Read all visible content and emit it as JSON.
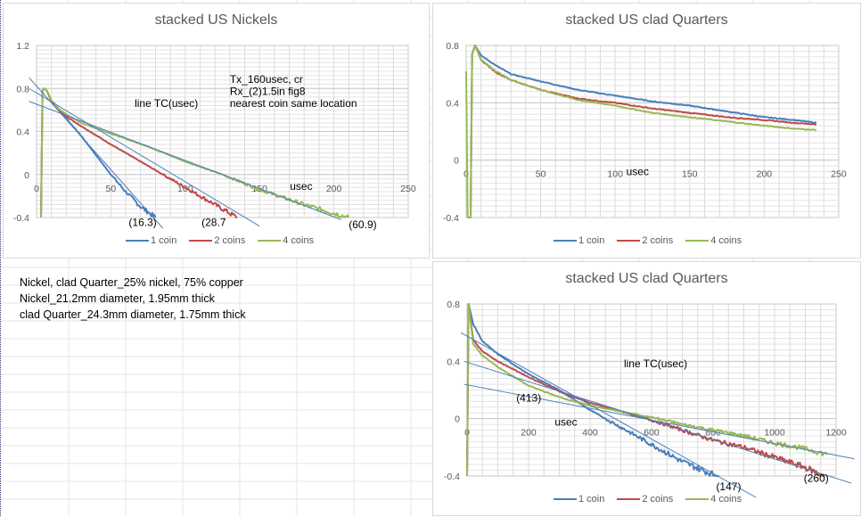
{
  "colors": {
    "one_coin": "#4a7ebb",
    "two_coins": "#be4b48",
    "four_coins": "#98b954",
    "trendline": "#4a7ebb",
    "grid": "#d9d9d9"
  },
  "notes": [
    "Nickel, clad Quarter_25% nickel, 75% copper",
    "Nickel_21.2mm diameter, 1.95mm thick",
    "clad Quarter_24.3mm diameter, 1.75mm thick"
  ],
  "chart_data": [
    {
      "type": "line",
      "title": "stacked US Nickels",
      "xlabel": "usec",
      "ylabel": "",
      "xlim": [
        0,
        250
      ],
      "ylim": [
        -0.4,
        1.2
      ],
      "xticks": [
        "0",
        "50",
        "100",
        "150",
        "200",
        "250"
      ],
      "yticks": [
        "-0.4",
        "0",
        "0.4",
        "0.8",
        "1.2"
      ],
      "xtick_values": [
        0,
        50,
        100,
        150,
        200,
        250
      ],
      "ytick_values": [
        -0.4,
        0,
        0.4,
        0.8,
        1.2
      ],
      "grid": true,
      "legend": "bottom",
      "series": [
        {
          "name": "1 coin",
          "x": [
            3,
            4,
            5,
            7,
            10,
            15,
            20,
            30,
            40,
            50,
            60,
            70,
            80
          ],
          "y": [
            -0.4,
            0.78,
            0.8,
            0.78,
            0.68,
            0.6,
            0.52,
            0.36,
            0.18,
            0.0,
            -0.16,
            -0.3,
            -0.4
          ]
        },
        {
          "name": "2 coins",
          "x": [
            3,
            4,
            5,
            7,
            10,
            15,
            20,
            30,
            50,
            70,
            85,
            100,
            120,
            135
          ],
          "y": [
            -0.4,
            0.78,
            0.8,
            0.78,
            0.68,
            0.6,
            0.54,
            0.45,
            0.28,
            0.12,
            0.0,
            -0.12,
            -0.28,
            -0.4
          ]
        },
        {
          "name": "4 coins",
          "x": [
            3,
            4,
            5,
            7,
            10,
            15,
            20,
            30,
            50,
            75,
            100,
            125,
            150,
            180,
            210
          ],
          "y": [
            -0.4,
            0.78,
            0.8,
            0.78,
            0.69,
            0.61,
            0.56,
            0.48,
            0.38,
            0.26,
            0.12,
            0.0,
            -0.14,
            -0.28,
            -0.4
          ]
        }
      ],
      "trendlines": [
        {
          "series": "1 coin",
          "x": [
            -5,
            85
          ],
          "y": [
            0.9,
            -0.5
          ]
        },
        {
          "series": "2 coins",
          "x": [
            -5,
            150
          ],
          "y": [
            0.8,
            -0.48
          ]
        },
        {
          "series": "4 coins",
          "x": [
            -5,
            205
          ],
          "y": [
            0.68,
            -0.42
          ]
        }
      ],
      "annotations": [
        {
          "text": "line TC(usec)",
          "x": 66,
          "y": 0.63
        },
        {
          "text": "Tx_160usec, cr",
          "x": 130,
          "y": 0.85
        },
        {
          "text": "Rx_(2)1.5in fig8",
          "x": 130,
          "y": 0.74
        },
        {
          "text": "nearest coin same location",
          "x": 130,
          "y": 0.63
        },
        {
          "text": "(16.3)",
          "x": 62,
          "y": -0.48
        },
        {
          "text": "(28.7",
          "x": 111,
          "y": -0.48
        },
        {
          "text": "(60.9)",
          "x": 210,
          "y": -0.5
        }
      ]
    },
    {
      "type": "line",
      "title": "stacked US clad Quarters",
      "xlabel": "usec",
      "ylabel": "",
      "xlim": [
        0,
        250
      ],
      "ylim": [
        -0.4,
        0.8
      ],
      "xticks": [
        "0",
        "50",
        "100",
        "150",
        "200",
        "250"
      ],
      "yticks": [
        "-0.4",
        "0",
        "0.4",
        "0.8"
      ],
      "xtick_values": [
        0,
        50,
        100,
        150,
        200,
        250
      ],
      "ytick_values": [
        -0.4,
        0,
        0.4,
        0.8
      ],
      "grid": true,
      "legend": "bottom",
      "series": [
        {
          "name": "1 coin",
          "x": [
            3,
            4,
            6,
            10,
            20,
            30,
            50,
            75,
            100,
            125,
            150,
            175,
            200,
            220,
            235
          ],
          "y": [
            -0.4,
            0.74,
            0.8,
            0.73,
            0.66,
            0.6,
            0.55,
            0.49,
            0.45,
            0.41,
            0.38,
            0.34,
            0.3,
            0.28,
            0.26
          ]
        },
        {
          "name": "2 coins",
          "x": [
            3,
            4,
            6,
            10,
            20,
            30,
            50,
            75,
            100,
            125,
            150,
            175,
            200,
            220,
            235
          ],
          "y": [
            -0.4,
            0.74,
            0.8,
            0.7,
            0.61,
            0.56,
            0.49,
            0.43,
            0.4,
            0.36,
            0.33,
            0.3,
            0.28,
            0.26,
            0.25
          ]
        },
        {
          "name": "4 coins",
          "x": [
            0,
            1,
            3,
            4,
            6,
            10,
            20,
            30,
            50,
            75,
            100,
            125,
            150,
            175,
            200,
            220,
            235
          ],
          "y": [
            0.62,
            -0.4,
            -0.4,
            0.74,
            0.8,
            0.7,
            0.62,
            0.56,
            0.49,
            0.42,
            0.38,
            0.33,
            0.3,
            0.27,
            0.24,
            0.22,
            0.21
          ]
        }
      ],
      "trendlines": [],
      "annotations": []
    },
    {
      "type": "line",
      "title": "stacked US clad Quarters",
      "xlabel": "usec",
      "ylabel": "",
      "xlim": [
        0,
        1200
      ],
      "ylim": [
        -0.4,
        0.8
      ],
      "xticks": [
        "0",
        "200",
        "400",
        "600",
        "800",
        "1000",
        "1200"
      ],
      "yticks": [
        "-0.4",
        "0",
        "0.4",
        "0.8"
      ],
      "xtick_values": [
        0,
        200,
        400,
        600,
        800,
        1000,
        1200
      ],
      "ytick_values": [
        -0.4,
        0,
        0.4,
        0.8
      ],
      "grid": true,
      "legend": "bottom",
      "series": [
        {
          "name": "1 coin",
          "x": [
            0,
            5,
            20,
            50,
            100,
            200,
            300,
            400,
            450,
            500,
            600,
            700,
            800,
            820
          ],
          "y": [
            -0.4,
            0.8,
            0.66,
            0.54,
            0.45,
            0.31,
            0.2,
            0.06,
            0.0,
            -0.06,
            -0.18,
            -0.3,
            -0.39,
            -0.4
          ]
        },
        {
          "name": "2 coins",
          "x": [
            0,
            5,
            20,
            50,
            100,
            200,
            300,
            400,
            500,
            600,
            700,
            800,
            900,
            1000,
            1100,
            1160
          ],
          "y": [
            -0.4,
            0.8,
            0.55,
            0.47,
            0.4,
            0.29,
            0.19,
            0.11,
            0.05,
            -0.01,
            -0.08,
            -0.15,
            -0.2,
            -0.27,
            -0.34,
            -0.4
          ]
        },
        {
          "name": "4 coins",
          "x": [
            0,
            5,
            20,
            50,
            100,
            200,
            300,
            400,
            500,
            600,
            700,
            800,
            900,
            1000,
            1100,
            1170
          ],
          "y": [
            -0.4,
            0.8,
            0.52,
            0.44,
            0.36,
            0.23,
            0.15,
            0.09,
            0.05,
            0.01,
            -0.04,
            -0.08,
            -0.12,
            -0.17,
            -0.21,
            -0.25
          ]
        }
      ],
      "trendlines": [
        {
          "series": "1 coin",
          "x": [
            -20,
            940
          ],
          "y": [
            0.6,
            -0.55
          ]
        },
        {
          "series": "2 coins",
          "x": [
            -10,
            1250
          ],
          "y": [
            0.4,
            -0.45
          ]
        },
        {
          "series": "4 coins",
          "x": [
            -10,
            1260
          ],
          "y": [
            0.24,
            -0.28
          ]
        }
      ],
      "annotations": [
        {
          "text": "line TC(usec)",
          "x": 510,
          "y": 0.36
        },
        {
          "text": "(413)",
          "x": 160,
          "y": 0.12
        },
        {
          "text": "(147)",
          "x": 810,
          "y": -0.5
        },
        {
          "text": "(260)",
          "x": 1095,
          "y": -0.44
        },
        {
          "text": "usec",
          "x": 285,
          "y": -0.05
        }
      ]
    }
  ]
}
